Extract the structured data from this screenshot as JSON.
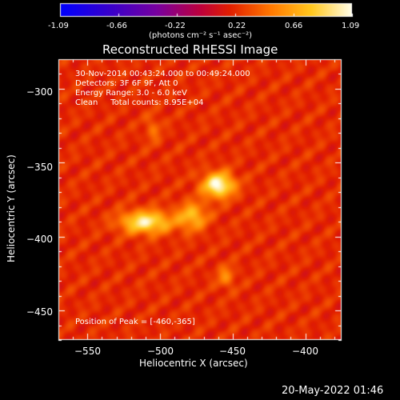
{
  "colorbar": {
    "ticks": [
      "-1.09",
      "-0.66",
      "-0.22",
      "0.22",
      "0.66",
      "1.09"
    ],
    "range": [
      -1.09,
      1.09
    ],
    "units": "(photons cm⁻² s⁻¹ asec⁻²)"
  },
  "chart_data": {
    "type": "heatmap",
    "title": "Reconstructed RHESSI Image",
    "xlabel": "Heliocentric X (arcsec)",
    "ylabel": "Heliocentric Y (arcsec)",
    "xlim": [
      -570,
      -375
    ],
    "ylim": [
      -470,
      -280
    ],
    "xticks": [
      -550,
      -500,
      -450,
      -400
    ],
    "yticks": [
      -300,
      -350,
      -400,
      -450
    ],
    "xtick_labels": [
      "−550",
      "−500",
      "−450",
      "−400"
    ],
    "ytick_labels": [
      "−300",
      "−350",
      "−400",
      "−450"
    ],
    "sources": [
      {
        "x": -460,
        "y": -365,
        "relative_intensity": 1.0
      },
      {
        "x": -510,
        "y": -390,
        "relative_intensity": 0.88
      },
      {
        "x": -478,
        "y": -386,
        "relative_intensity": 0.6
      },
      {
        "x": -455,
        "y": -427,
        "relative_intensity": 0.35
      },
      {
        "x": -505,
        "y": -327,
        "relative_intensity": 0.25
      }
    ],
    "annotations": [
      "30-Nov-2014 00:43:24.000 to 00:49:24.000",
      "Detectors: 3F 6F 9F, Att 0",
      "Energy Range: 3.0 - 6.0 keV",
      "Clean     Total counts: 8.95E+04"
    ],
    "peak_label": "Position of Peak = [-460,-365]"
  },
  "footer_timestamp": "20-May-2022 01:46"
}
